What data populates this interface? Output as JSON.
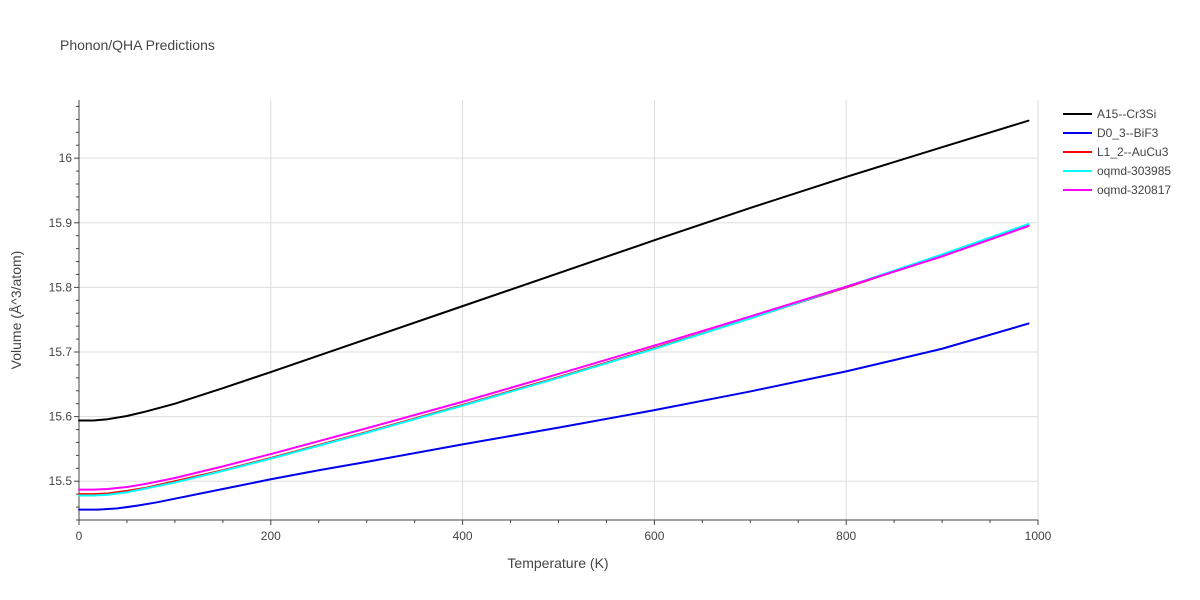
{
  "chart_data": {
    "type": "line",
    "title": "Phonon/QHA Predictions",
    "xlabel": "Temperature (K)",
    "ylabel": "Volume (Å^3/atom)",
    "xlim": [
      0,
      1000
    ],
    "ylim": [
      15.44,
      16.09
    ],
    "xticks": [
      0,
      200,
      400,
      600,
      800,
      1000
    ],
    "yticks": [
      15.5,
      15.6,
      15.7,
      15.8,
      15.9,
      16
    ],
    "ytick_labels": [
      "15.5",
      "15.6",
      "15.7",
      "15.8",
      "15.9",
      "16"
    ],
    "grid": true,
    "legend_position": "top-right",
    "series": [
      {
        "name": "A15--Cr3Si",
        "color": "#000000",
        "x": [
          0,
          15,
          30,
          50,
          70,
          100,
          150,
          200,
          300,
          400,
          500,
          600,
          700,
          800,
          900,
          990
        ],
        "y": [
          15.594,
          15.594,
          15.596,
          15.601,
          15.608,
          15.62,
          15.644,
          15.669,
          15.72,
          15.771,
          15.822,
          15.873,
          15.923,
          15.971,
          16.017,
          16.058
        ]
      },
      {
        "name": "D0_3--BiF3",
        "color": "#0000ee",
        "x": [
          0,
          20,
          40,
          60,
          80,
          100,
          150,
          200,
          250,
          300,
          400,
          500,
          600,
          700,
          800,
          900,
          990
        ],
        "y": [
          15.456,
          15.456,
          15.458,
          15.462,
          15.467,
          15.473,
          15.488,
          15.503,
          15.517,
          15.53,
          15.557,
          15.583,
          15.61,
          15.639,
          15.67,
          15.705,
          15.744
        ]
      },
      {
        "name": "L1_2--AuCu3",
        "color": "#ff0000",
        "x": [
          0,
          15,
          30,
          50,
          70,
          100,
          150,
          200,
          300,
          400,
          500,
          600,
          700,
          800,
          900,
          990
        ],
        "y": [
          15.48,
          15.48,
          15.481,
          15.485,
          15.49,
          15.5,
          15.517,
          15.536,
          15.576,
          15.618,
          15.661,
          15.706,
          15.752,
          15.8,
          15.849,
          15.895
        ]
      },
      {
        "name": "oqmd-303985",
        "color": "#00ffff",
        "x": [
          0,
          15,
          30,
          50,
          70,
          100,
          150,
          200,
          300,
          400,
          500,
          600,
          700,
          800,
          900,
          990
        ],
        "y": [
          15.478,
          15.478,
          15.479,
          15.483,
          15.489,
          15.498,
          15.516,
          15.535,
          15.575,
          15.617,
          15.66,
          15.705,
          15.752,
          15.801,
          15.851,
          15.898
        ]
      },
      {
        "name": "oqmd-320817",
        "color": "#ff00ff",
        "x": [
          0,
          15,
          30,
          50,
          70,
          100,
          150,
          200,
          300,
          400,
          500,
          600,
          700,
          800,
          900,
          990
        ],
        "y": [
          15.487,
          15.487,
          15.488,
          15.491,
          15.496,
          15.505,
          15.523,
          15.542,
          15.582,
          15.623,
          15.666,
          15.71,
          15.755,
          15.801,
          15.848,
          15.895
        ]
      }
    ]
  }
}
